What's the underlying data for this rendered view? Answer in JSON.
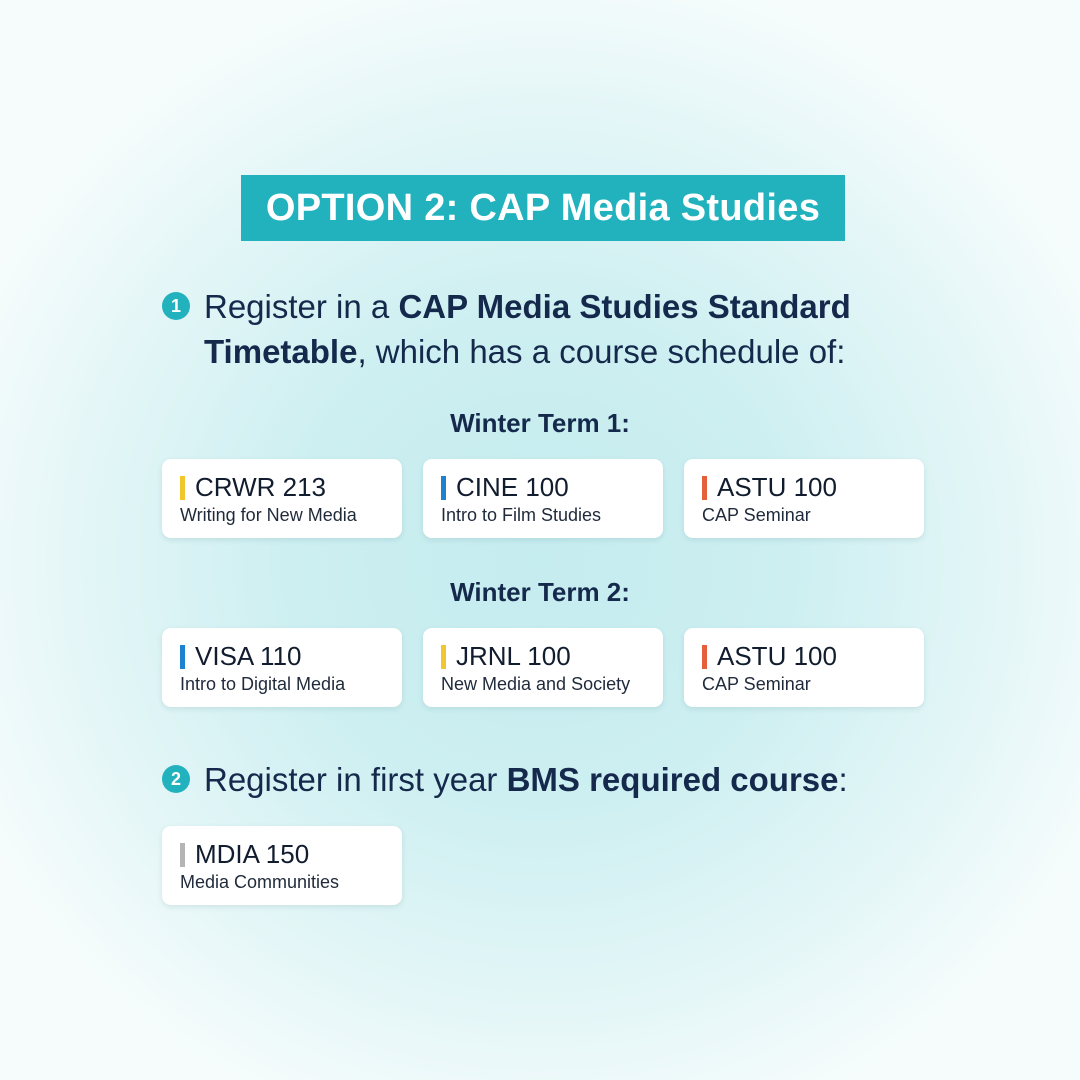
{
  "title": "OPTION 2: CAP Media Studies",
  "step1": {
    "number": "1",
    "text_before": "Register in a ",
    "text_bold": "CAP Media Studies Standard Timetable",
    "text_after": ", which has a course schedule of:"
  },
  "terms": [
    {
      "label": "Winter Term 1:",
      "courses": [
        {
          "code": "CRWR 213",
          "name": "Writing for New Media",
          "color": "#f2c72e"
        },
        {
          "code": "CINE 100",
          "name": "Intro to Film Studies",
          "color": "#1f82d0"
        },
        {
          "code": "ASTU 100",
          "name": "CAP Seminar",
          "color": "#e5603a"
        }
      ]
    },
    {
      "label": "Winter Term 2:",
      "courses": [
        {
          "code": "VISA 110",
          "name": "Intro to Digital Media",
          "color": "#1f82d0"
        },
        {
          "code": "JRNL 100",
          "name": "New Media and Society",
          "color": "#f2c72e"
        },
        {
          "code": "ASTU 100",
          "name": "CAP Seminar",
          "color": "#e5603a"
        }
      ]
    }
  ],
  "step2": {
    "number": "2",
    "text_before": "Register in first year ",
    "text_bold": "BMS required course",
    "text_after": ":"
  },
  "required_course": {
    "code": "MDIA 150",
    "name": "Media Communities",
    "color": "#b4b4b4"
  }
}
